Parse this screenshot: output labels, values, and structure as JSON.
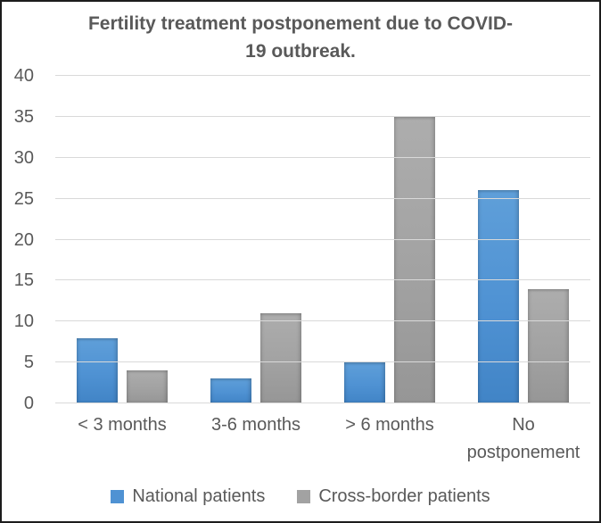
{
  "figure": {
    "background": "#ffffff",
    "border_color": "#1c1c1c",
    "text_color": "#595959",
    "gridline_color": "#d9d9d9"
  },
  "chart_data": {
    "type": "bar",
    "grouped": true,
    "title": "Fertility treatment postponement due to COVID-19 outbreak.",
    "categories": [
      "< 3 months",
      "3-6 months",
      "> 6 months",
      "No postponement"
    ],
    "series": [
      {
        "name": "National patients",
        "values": [
          8,
          3,
          5,
          26
        ],
        "color": "#4f92d3",
        "color_top": "#5f9fd9",
        "color_bottom": "#4184c6"
      },
      {
        "name": "Cross-border patients",
        "values": [
          4,
          11,
          35,
          14
        ],
        "color": "#a2a2a2",
        "color_top": "#adadad",
        "color_bottom": "#969696"
      }
    ],
    "xlabel": "",
    "ylabel": "",
    "ylim": [
      0,
      40
    ],
    "y_ticks": [
      0,
      5,
      10,
      15,
      20,
      25,
      30,
      35,
      40
    ],
    "grid": true,
    "legend_position": "bottom"
  }
}
